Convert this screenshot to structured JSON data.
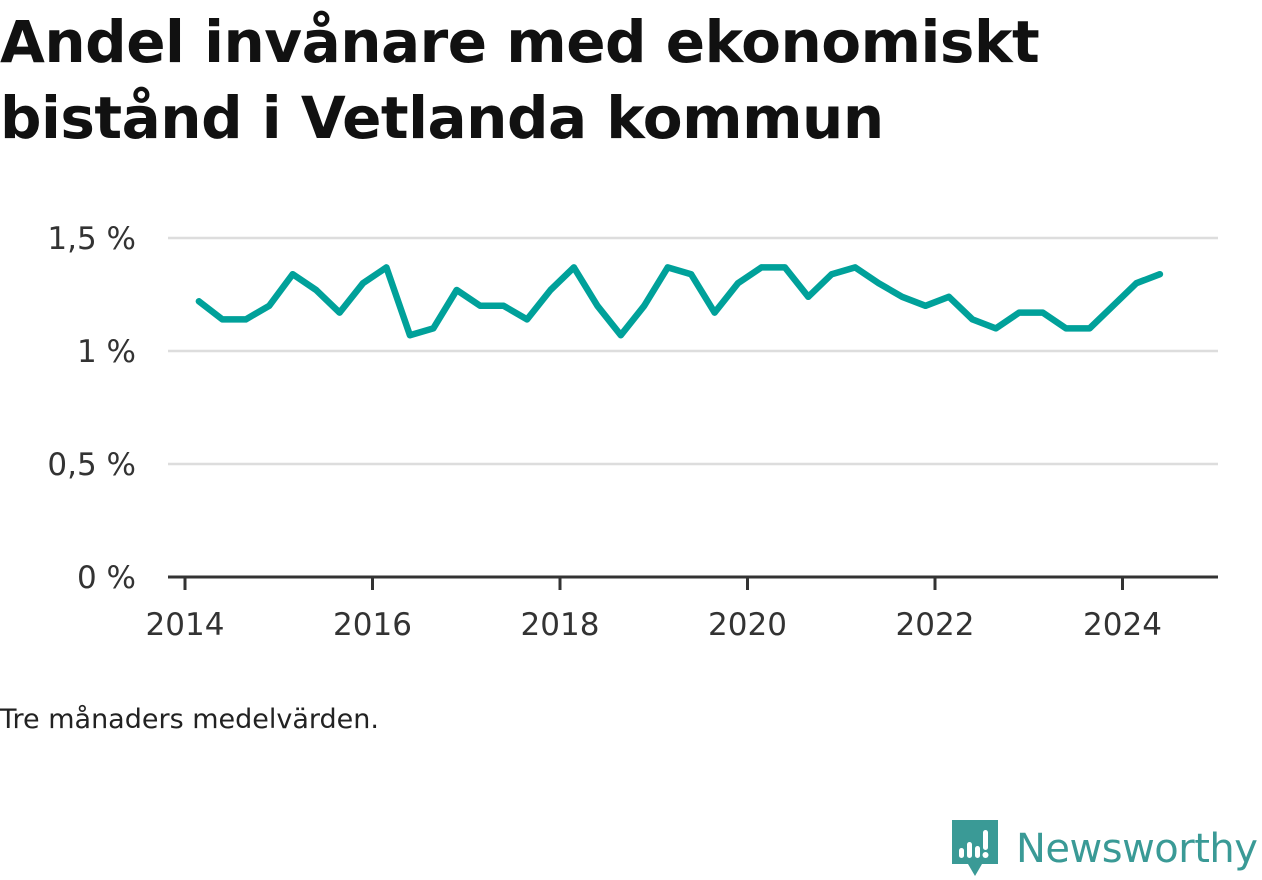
{
  "title": "Andel invånare med ekonomiskt bistånd i Vetlanda kommun",
  "note": "Tre månaders medelvärden.",
  "brand": {
    "name": "Newsworthy",
    "logo_icon": "newsworthy-logo-icon",
    "color": "#3a9a96"
  },
  "colors": {
    "line": "#00a19a",
    "grid": "#dddddd",
    "axis": "#333333"
  },
  "chart_data": {
    "type": "line",
    "title": "Andel invånare med ekonomiskt bistånd i Vetlanda kommun",
    "xlabel": "",
    "ylabel": "",
    "xlim": [
      2014.0,
      2025.2
    ],
    "ylim": [
      0,
      1.5
    ],
    "grid": true,
    "y_ticks": [
      0,
      0.5,
      1,
      1.5
    ],
    "y_tick_labels": [
      "0 %",
      "0,5 %",
      "1 %",
      "1,5 %"
    ],
    "x_ticks": [
      2014,
      2016,
      2018,
      2020,
      2022,
      2024
    ],
    "x_tick_labels": [
      "2014",
      "2016",
      "2018",
      "2020",
      "2022",
      "2024"
    ],
    "series": [
      {
        "x": [
          2014.33,
          2014.58,
          2014.83,
          2015.08,
          2015.33,
          2015.58,
          2015.83,
          2016.08,
          2016.33,
          2016.58,
          2016.83,
          2017.08,
          2017.33,
          2017.58,
          2017.83,
          2018.08,
          2018.33,
          2018.58,
          2018.83,
          2019.08,
          2019.33,
          2019.58,
          2019.83,
          2020.08,
          2020.33,
          2020.58,
          2020.83,
          2021.08,
          2021.33,
          2021.58,
          2021.83,
          2022.08,
          2022.33,
          2022.58,
          2022.83,
          2023.08,
          2023.33,
          2023.58,
          2023.83,
          2024.08,
          2024.33,
          2024.58
        ],
        "values": [
          1.22,
          1.14,
          1.14,
          1.2,
          1.34,
          1.27,
          1.17,
          1.3,
          1.37,
          1.07,
          1.1,
          1.27,
          1.2,
          1.2,
          1.14,
          1.27,
          1.37,
          1.2,
          1.07,
          1.2,
          1.37,
          1.34,
          1.17,
          1.3,
          1.37,
          1.37,
          1.24,
          1.34,
          1.37,
          1.3,
          1.24,
          1.2,
          1.24,
          1.14,
          1.1,
          1.17,
          1.17,
          1.1,
          1.1,
          1.2,
          1.3,
          1.34
        ]
      }
    ]
  }
}
